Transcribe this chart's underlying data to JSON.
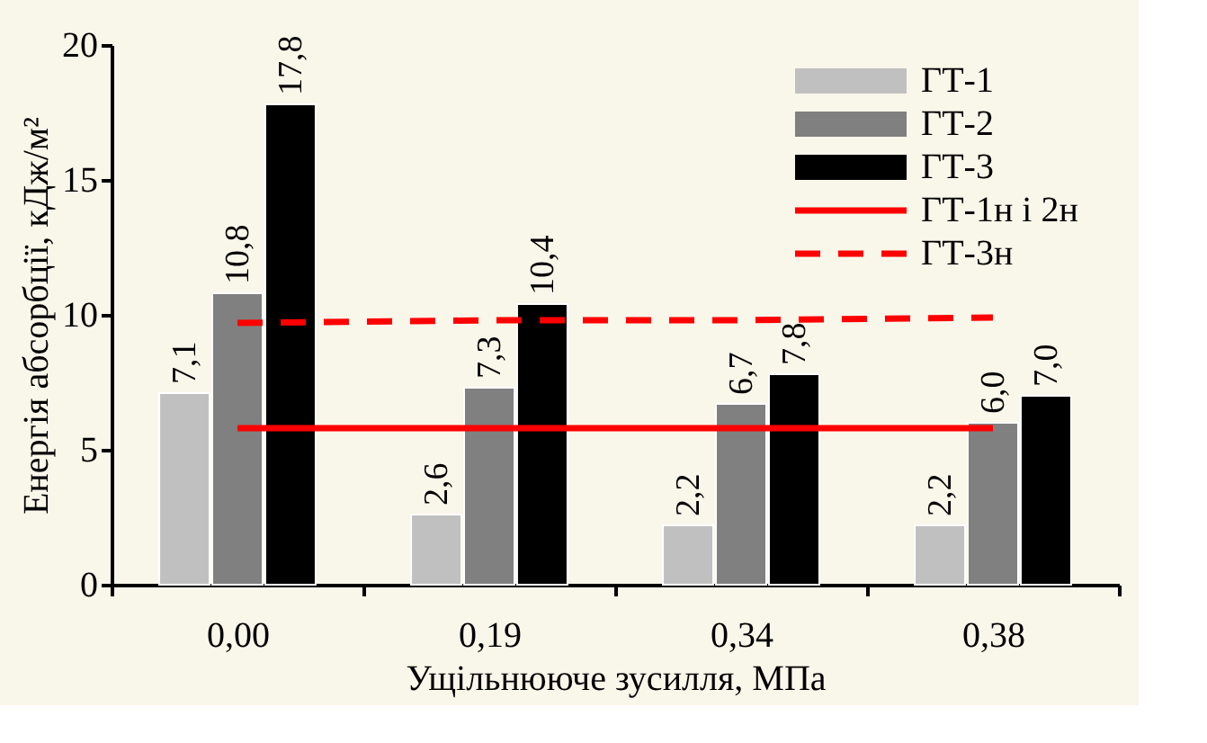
{
  "chart_data": {
    "type": "bar",
    "xlabel": "Ущільнююче зусилля, МПа",
    "ylabel": "Енергія абсорбції, кДж/м²",
    "categories": [
      "0,00",
      "0,19",
      "0,34",
      "0,38"
    ],
    "series": [
      {
        "name": "ГТ-1",
        "color": "#c0c0c0",
        "values": [
          7.1,
          2.6,
          2.2,
          2.2
        ],
        "value_labels": [
          "7,1",
          "2,6",
          "2,2",
          "2,2"
        ]
      },
      {
        "name": "ГТ-2",
        "color": "#808080",
        "values": [
          10.8,
          7.3,
          6.7,
          6.0
        ],
        "value_labels": [
          "10,8",
          "7,3",
          "6,7",
          "6,0"
        ]
      },
      {
        "name": "ГТ-3",
        "color": "#000000",
        "values": [
          17.8,
          10.4,
          7.8,
          7.0
        ],
        "value_labels": [
          "17,8",
          "10,4",
          "7,8",
          "7,0"
        ]
      },
      {
        "name": "ГТ-1н і 2н",
        "type": "line",
        "line_style": "solid",
        "color": "#ff0000",
        "values": [
          5.8,
          5.8,
          5.8,
          5.8
        ]
      },
      {
        "name": "ГТ-3н",
        "type": "line",
        "line_style": "dashed",
        "color": "#ff0000",
        "values": [
          9.7,
          9.8,
          9.8,
          9.9
        ]
      }
    ],
    "ylim": [
      0,
      20
    ],
    "yticks": [
      0,
      5,
      10,
      15,
      20
    ],
    "grid": false,
    "legend": "top right",
    "marker": "none"
  }
}
